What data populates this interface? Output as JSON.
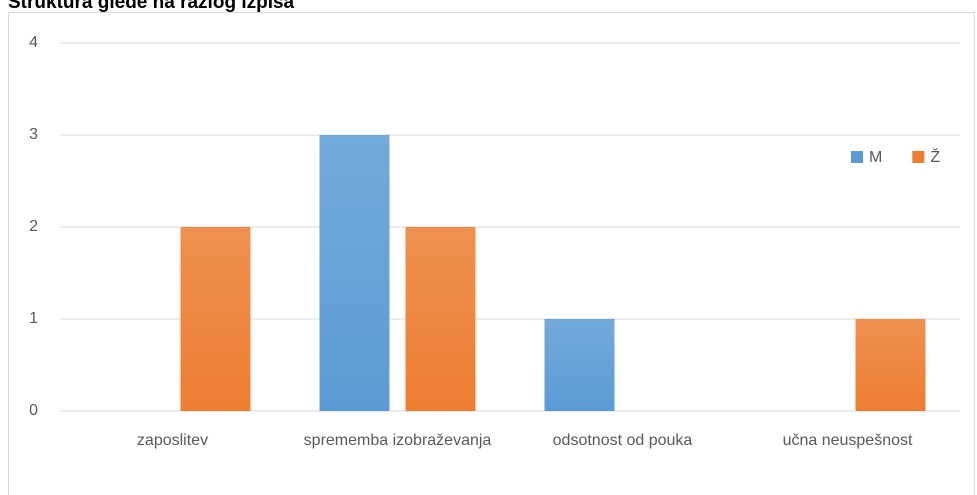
{
  "chart_data": {
    "type": "bar",
    "title": "Struktura glede na razlog izpisa",
    "categories": [
      "zaposlitev",
      "sprememba izobraževanja",
      "odsotnost od pouka",
      "učna neuspešnost"
    ],
    "series": [
      {
        "name": "M",
        "color": "#5b9bd5",
        "values": [
          0,
          3,
          1,
          0
        ]
      },
      {
        "name": "Ž",
        "color": "#ed7d31",
        "values": [
          2,
          2,
          0,
          1
        ]
      }
    ],
    "ylim": [
      0,
      4
    ],
    "yticks": [
      0,
      1,
      2,
      3,
      4
    ],
    "grid": true,
    "legend": "top-right"
  }
}
